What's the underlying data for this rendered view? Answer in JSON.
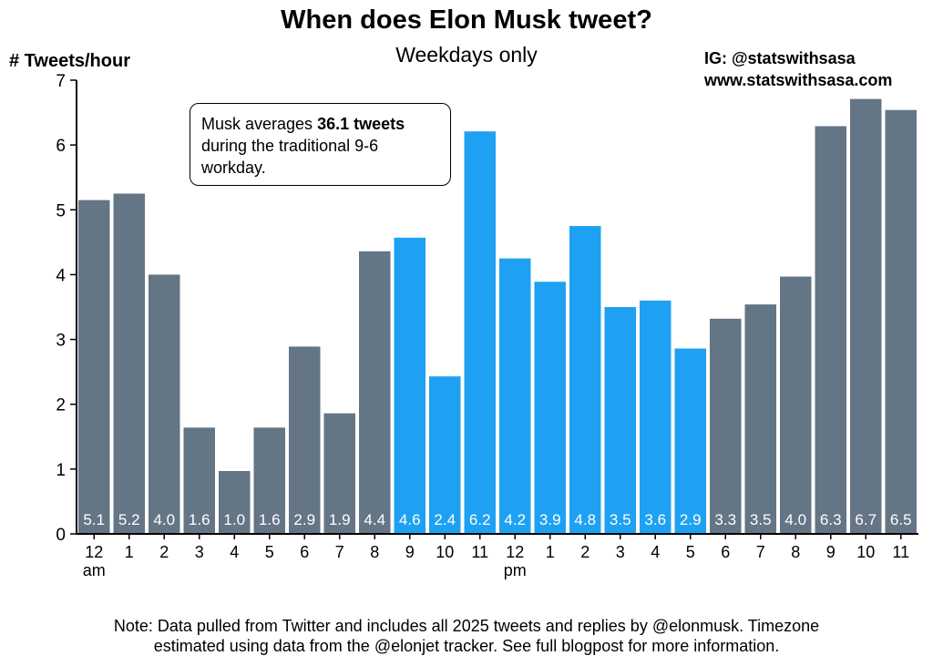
{
  "header": {
    "title": "When does Elon Musk tweet?",
    "subtitle": "Weekdays only",
    "credit_line1": "IG: @statswithsasa",
    "credit_line2": "www.statswithsasa.com"
  },
  "annotation": {
    "prefix": "Musk averages ",
    "highlight": "36.1 tweets",
    "suffix": " during the traditional 9-6 workday."
  },
  "footer": {
    "note_line1": "Note: Data pulled from Twitter and includes all 2025 tweets and replies by @elonmusk. Timezone",
    "note_line2": "estimated using data from the @elonjet tracker. See full blogpost for more information."
  },
  "colors": {
    "base": "#647585",
    "highlight": "#1ea1f2",
    "label_text": "#ffffff"
  },
  "chart_data": {
    "type": "bar",
    "ylabel": "# Tweets/hour",
    "xlabel": "",
    "ylim": [
      0,
      7
    ],
    "yticks": [
      0,
      1,
      2,
      3,
      4,
      5,
      6,
      7
    ],
    "grid": false,
    "categories": [
      "12\nam",
      "1",
      "2",
      "3",
      "4",
      "5",
      "6",
      "7",
      "8",
      "9",
      "10",
      "11",
      "12\npm",
      "1",
      "2",
      "3",
      "4",
      "5",
      "6",
      "7",
      "8",
      "9",
      "10",
      "11"
    ],
    "values": [
      5.15,
      5.25,
      4.0,
      1.64,
      0.97,
      1.64,
      2.89,
      1.86,
      4.36,
      4.57,
      2.43,
      6.21,
      4.25,
      3.89,
      4.75,
      3.5,
      3.6,
      2.86,
      3.32,
      3.54,
      3.97,
      6.29,
      6.71,
      6.54
    ],
    "value_labels": [
      "5.1",
      "5.2",
      "4.0",
      "1.6",
      "1.0",
      "1.6",
      "2.9",
      "1.9",
      "4.4",
      "4.6",
      "2.4",
      "6.2",
      "4.2",
      "3.9",
      "4.8",
      "3.5",
      "3.6",
      "2.9",
      "3.3",
      "3.5",
      "4.0",
      "6.3",
      "6.7",
      "6.5"
    ],
    "highlighted": [
      false,
      false,
      false,
      false,
      false,
      false,
      false,
      false,
      false,
      true,
      true,
      true,
      true,
      true,
      true,
      true,
      true,
      true,
      false,
      false,
      false,
      false,
      false,
      false
    ]
  }
}
